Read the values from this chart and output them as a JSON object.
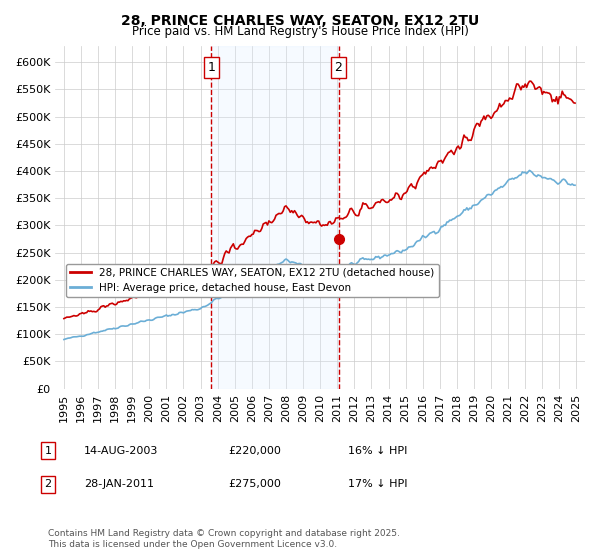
{
  "title": "28, PRINCE CHARLES WAY, SEATON, EX12 2TU",
  "subtitle": "Price paid vs. HM Land Registry's House Price Index (HPI)",
  "legend_line1": "28, PRINCE CHARLES WAY, SEATON, EX12 2TU (detached house)",
  "legend_line2": "HPI: Average price, detached house, East Devon",
  "annotation1": {
    "label": "1",
    "date": "14-AUG-2003",
    "price": "£220,000",
    "hpi": "16% ↓ HPI"
  },
  "annotation2": {
    "label": "2",
    "date": "28-JAN-2011",
    "price": "£275,000",
    "hpi": "17% ↓ HPI"
  },
  "footer": "Contains HM Land Registry data © Crown copyright and database right 2025.\nThis data is licensed under the Open Government Licence v3.0.",
  "hpi_color": "#6baed6",
  "price_color": "#cc0000",
  "marker1_color": "#cc0000",
  "marker2_color": "#cc0000",
  "vline_color": "#cc0000",
  "shade_color": "#ddeeff",
  "bg_color": "#ffffff",
  "grid_color": "#cccccc",
  "ylim": [
    0,
    630000
  ],
  "yticks": [
    0,
    50000,
    100000,
    150000,
    200000,
    250000,
    300000,
    350000,
    400000,
    450000,
    500000,
    550000,
    600000
  ],
  "xstart_year": 1995,
  "xend_year": 2025
}
